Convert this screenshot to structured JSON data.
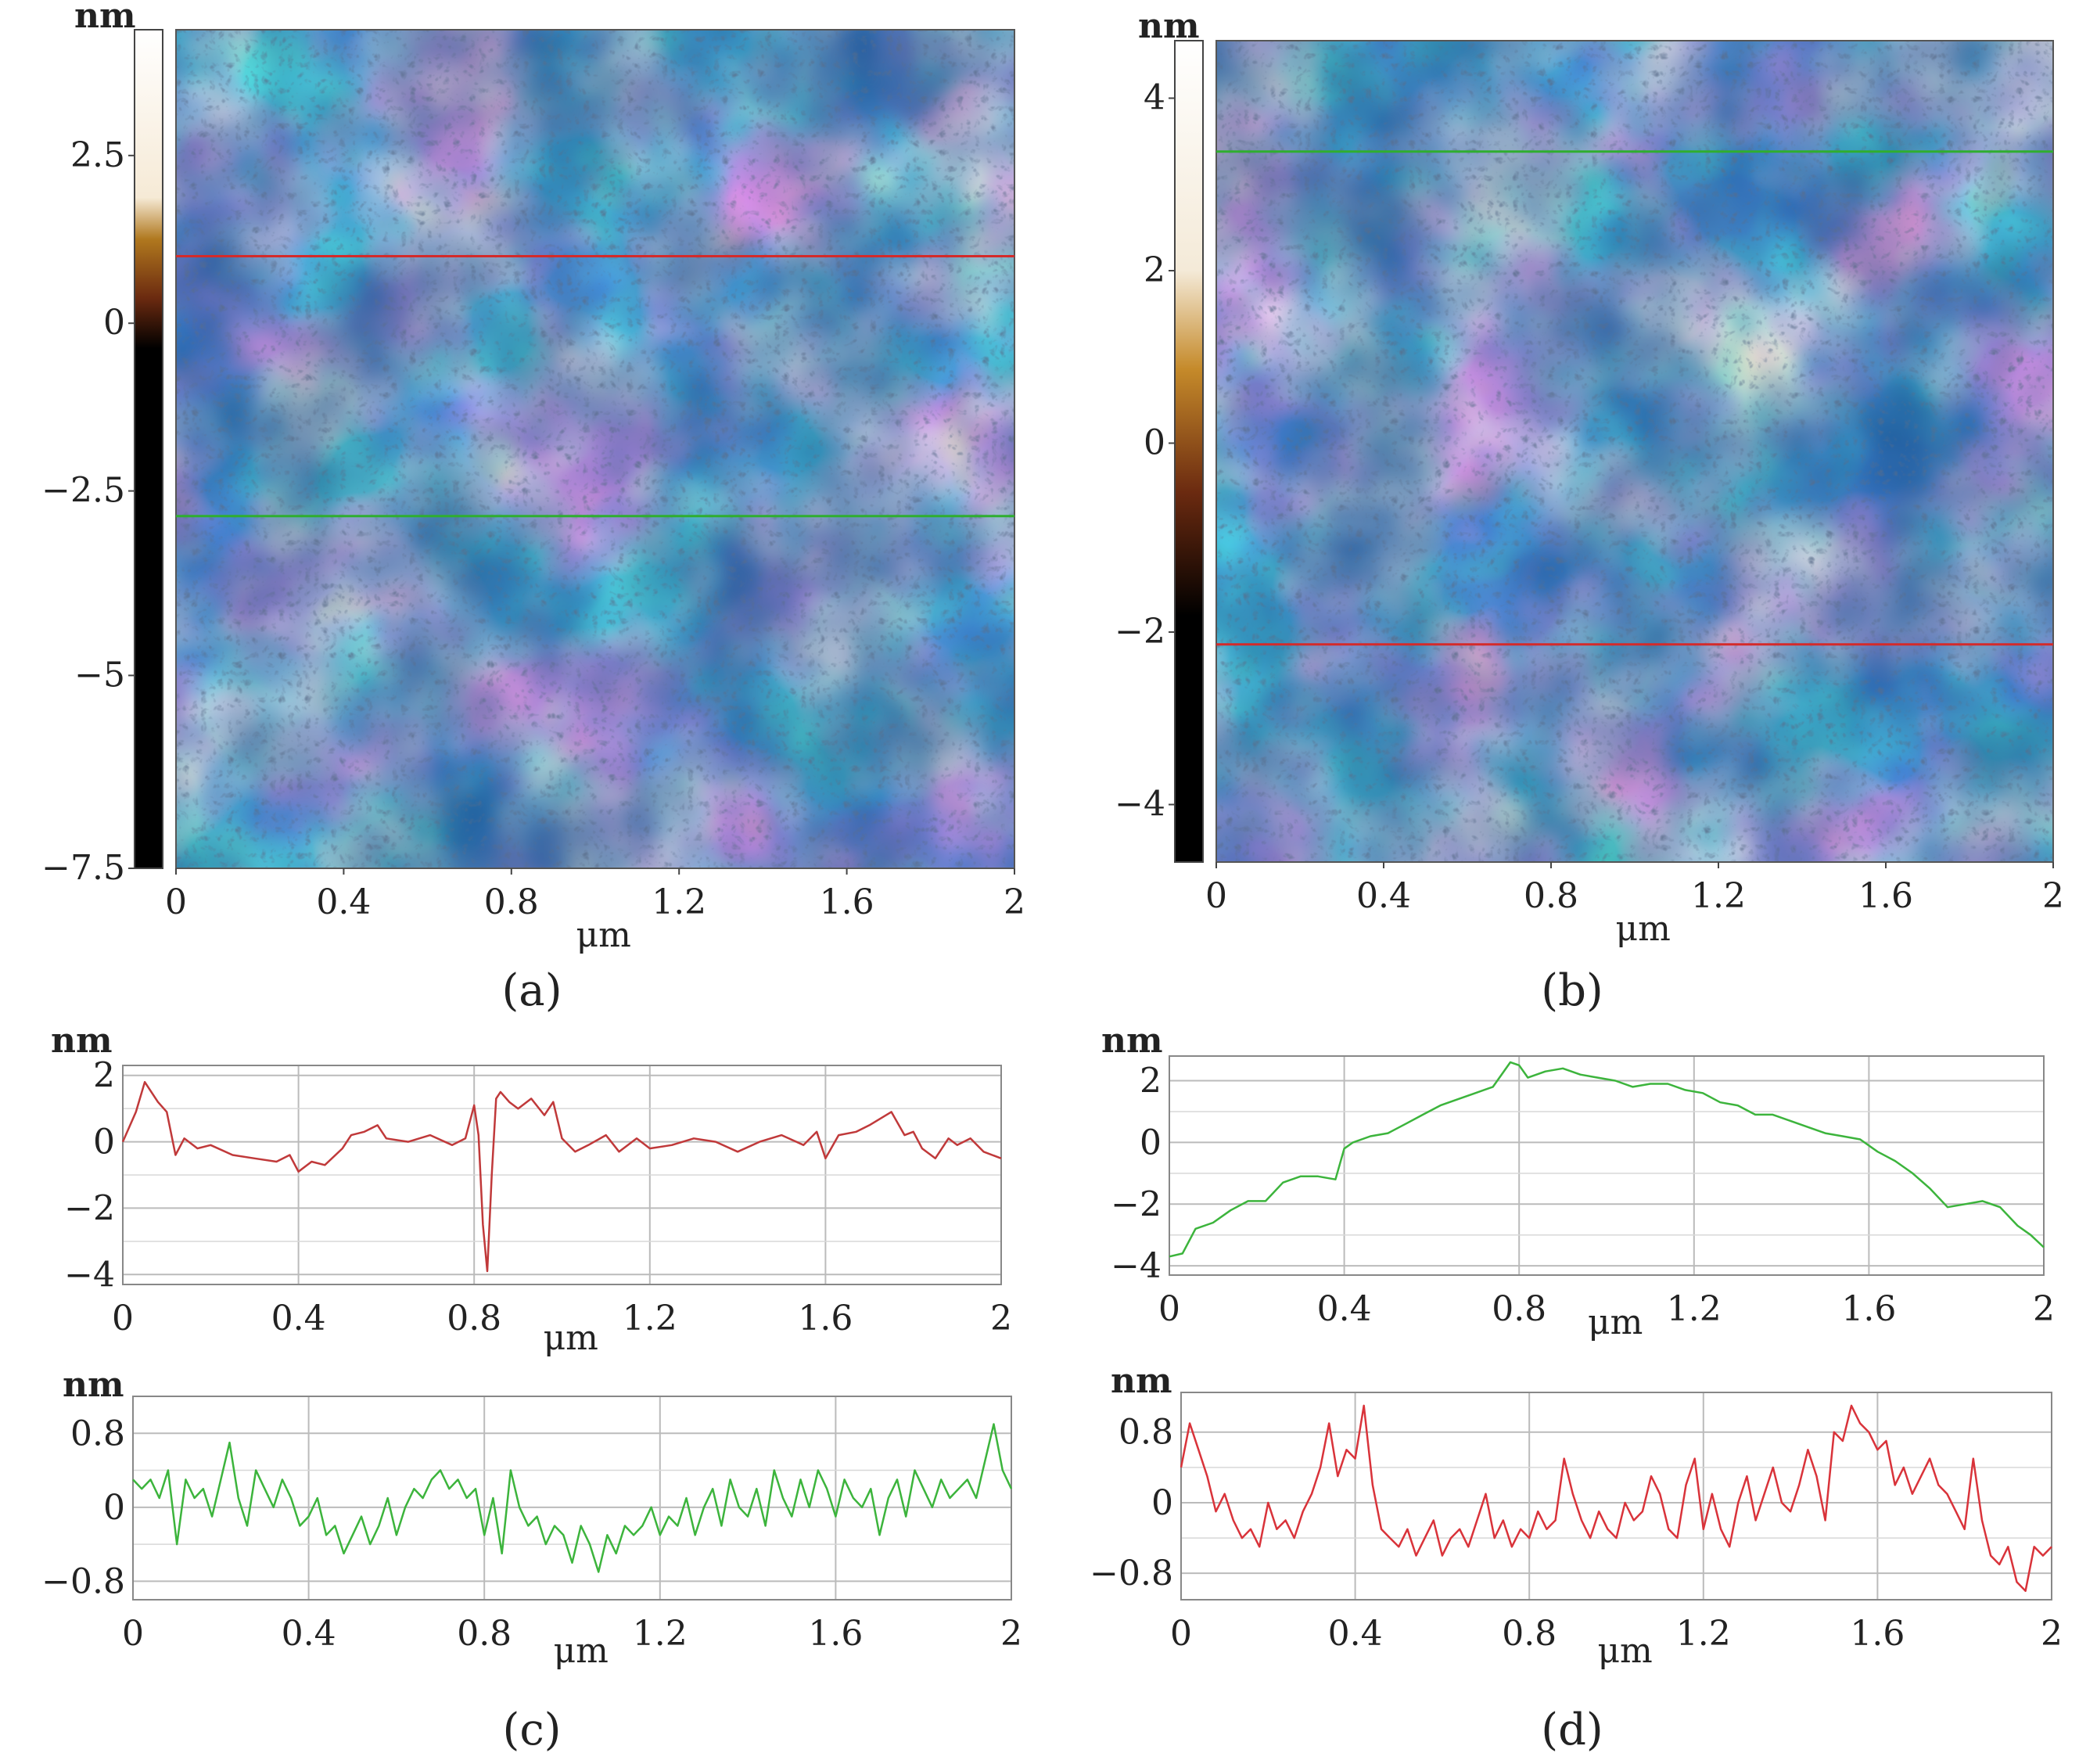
{
  "panels": [
    {
      "caption": "(a)"
    },
    {
      "caption": "(b)"
    },
    {
      "caption": "(c)"
    },
    {
      "caption": "(d)"
    }
  ],
  "chart_data": [
    {
      "type": "heatmap",
      "panel": "(a)",
      "units": {
        "z": "nm",
        "x": "μm"
      },
      "xlim": [
        0,
        2
      ],
      "x_ticks": [
        "0",
        "0.4",
        "0.8",
        "1.2",
        "1.6",
        "2"
      ],
      "colorbar": {
        "range": [
          -7.5,
          2.5
        ],
        "ticks": [
          "2.5",
          "0",
          "−2.5",
          "−5",
          "−7.5"
        ]
      },
      "scan_lines": [
        {
          "color": "#d42a2a",
          "fraction_from_top": 0.27
        },
        {
          "color": "#2fae2f",
          "fraction_from_top": 0.58
        }
      ],
      "colors": {
        "low": "#1e5a9c",
        "mid": "#dfe8f0",
        "high": "#d99a4e",
        "dark": "#000000"
      }
    },
    {
      "type": "heatmap",
      "panel": "(b)",
      "units": {
        "z": "nm",
        "x": "μm"
      },
      "xlim": [
        0,
        2
      ],
      "x_ticks": [
        "0",
        "0.4",
        "0.8",
        "1.2",
        "1.6",
        "2"
      ],
      "colorbar": {
        "range": [
          -5,
          4.7
        ],
        "ticks": [
          "4",
          "2",
          "0",
          "−2",
          "−4"
        ]
      },
      "scan_lines": [
        {
          "color": "#2fae2f",
          "fraction_from_top": 0.135
        },
        {
          "color": "#d42a2a",
          "fraction_from_top": 0.735
        }
      ],
      "colors": {
        "low": "#1e5a9c",
        "mid": "#dfe8f0",
        "high": "#d99a4e",
        "dark": "#000000"
      }
    },
    {
      "type": "line",
      "panel": "(c) top",
      "ylabel": "nm",
      "xlabel": "μm",
      "xlim": [
        0,
        2
      ],
      "ylim": [
        -4.3,
        2.3
      ],
      "x_ticks": [
        "0",
        "0.4",
        "0.8",
        "1.2",
        "1.6",
        "2"
      ],
      "y_ticks": [
        "2",
        "0",
        "−2",
        "−4"
      ],
      "color": "#c0393a",
      "series": [
        {
          "x": [
            0,
            0.03,
            0.05,
            0.08,
            0.1,
            0.12,
            0.14,
            0.17,
            0.2,
            0.25,
            0.3,
            0.35,
            0.38,
            0.4,
            0.43,
            0.46,
            0.5,
            0.52,
            0.55,
            0.58,
            0.6,
            0.65,
            0.7,
            0.75,
            0.78,
            0.8,
            0.81,
            0.82,
            0.83,
            0.84,
            0.85,
            0.86,
            0.88,
            0.9,
            0.93,
            0.96,
            0.98,
            1.0,
            1.03,
            1.06,
            1.1,
            1.13,
            1.17,
            1.2,
            1.25,
            1.3,
            1.35,
            1.4,
            1.45,
            1.5,
            1.55,
            1.58,
            1.6,
            1.63,
            1.67,
            1.7,
            1.75,
            1.78,
            1.8,
            1.82,
            1.85,
            1.88,
            1.9,
            1.93,
            1.96,
            2.0
          ],
          "y": [
            0,
            0.9,
            1.8,
            1.2,
            0.9,
            -0.4,
            0.1,
            -0.2,
            -0.1,
            -0.4,
            -0.5,
            -0.6,
            -0.4,
            -0.9,
            -0.6,
            -0.7,
            -0.2,
            0.2,
            0.3,
            0.5,
            0.1,
            0,
            0.2,
            -0.1,
            0.1,
            1.1,
            0.2,
            -2.5,
            -3.9,
            -1,
            1.3,
            1.5,
            1.2,
            1.0,
            1.3,
            0.8,
            1.2,
            0.1,
            -0.3,
            -0.1,
            0.2,
            -0.3,
            0.1,
            -0.2,
            -0.1,
            0.1,
            0,
            -0.3,
            0,
            0.2,
            -0.1,
            0.3,
            -0.5,
            0.2,
            0.3,
            0.5,
            0.9,
            0.2,
            0.3,
            -0.2,
            -0.5,
            0.1,
            -0.1,
            0.1,
            -0.3,
            -0.5
          ]
        }
      ]
    },
    {
      "type": "line",
      "panel": "(c) bottom",
      "ylabel": "nm",
      "xlabel": "μm",
      "xlim": [
        0,
        2
      ],
      "ylim": [
        -1.0,
        1.2
      ],
      "x_ticks": [
        "0",
        "0.4",
        "0.8",
        "1.2",
        "1.6",
        "2"
      ],
      "y_ticks": [
        "0.8",
        "0",
        "−0.8"
      ],
      "color": "#3cb43c",
      "series": [
        {
          "x": [
            0,
            0.02,
            0.04,
            0.06,
            0.08,
            0.1,
            0.12,
            0.14,
            0.16,
            0.18,
            0.2,
            0.22,
            0.24,
            0.26,
            0.28,
            0.3,
            0.32,
            0.34,
            0.36,
            0.38,
            0.4,
            0.42,
            0.44,
            0.46,
            0.48,
            0.5,
            0.52,
            0.54,
            0.56,
            0.58,
            0.6,
            0.62,
            0.64,
            0.66,
            0.68,
            0.7,
            0.72,
            0.74,
            0.76,
            0.78,
            0.8,
            0.82,
            0.84,
            0.86,
            0.88,
            0.9,
            0.92,
            0.94,
            0.96,
            0.98,
            1.0,
            1.02,
            1.04,
            1.06,
            1.08,
            1.1,
            1.12,
            1.14,
            1.16,
            1.18,
            1.2,
            1.22,
            1.24,
            1.26,
            1.28,
            1.3,
            1.32,
            1.34,
            1.36,
            1.38,
            1.4,
            1.42,
            1.44,
            1.46,
            1.48,
            1.5,
            1.52,
            1.54,
            1.56,
            1.58,
            1.6,
            1.62,
            1.64,
            1.66,
            1.68,
            1.7,
            1.72,
            1.74,
            1.76,
            1.78,
            1.8,
            1.82,
            1.84,
            1.86,
            1.88,
            1.9,
            1.92,
            1.94,
            1.96,
            1.98,
            2.0
          ],
          "y": [
            0.3,
            0.2,
            0.3,
            0.1,
            0.4,
            -0.4,
            0.3,
            0.1,
            0.2,
            -0.1,
            0.3,
            0.7,
            0.1,
            -0.2,
            0.4,
            0.2,
            0.0,
            0.3,
            0.1,
            -0.2,
            -0.1,
            0.1,
            -0.3,
            -0.2,
            -0.5,
            -0.3,
            -0.1,
            -0.4,
            -0.2,
            0.1,
            -0.3,
            0.0,
            0.2,
            0.1,
            0.3,
            0.4,
            0.2,
            0.3,
            0.1,
            0.2,
            -0.3,
            0.1,
            -0.5,
            0.4,
            0.0,
            -0.2,
            -0.1,
            -0.4,
            -0.2,
            -0.3,
            -0.6,
            -0.2,
            -0.4,
            -0.7,
            -0.3,
            -0.5,
            -0.2,
            -0.3,
            -0.2,
            0.0,
            -0.3,
            -0.1,
            -0.2,
            0.1,
            -0.3,
            0.0,
            0.2,
            -0.2,
            0.3,
            0.0,
            -0.1,
            0.2,
            -0.2,
            0.4,
            0.1,
            -0.1,
            0.3,
            0.0,
            0.4,
            0.2,
            -0.1,
            0.3,
            0.1,
            0.0,
            0.2,
            -0.3,
            0.1,
            0.3,
            -0.1,
            0.4,
            0.2,
            0.0,
            0.3,
            0.1,
            0.2,
            0.3,
            0.1,
            0.5,
            0.9,
            0.4,
            0.2
          ]
        }
      ]
    },
    {
      "type": "line",
      "panel": "(d) top",
      "ylabel": "nm",
      "xlabel": "μm",
      "xlim": [
        0,
        2
      ],
      "ylim": [
        -4.3,
        2.8
      ],
      "x_ticks": [
        "0",
        "0.4",
        "0.8",
        "1.2",
        "1.6",
        "2"
      ],
      "y_ticks": [
        "2",
        "0",
        "−2",
        "−4"
      ],
      "color": "#3cb43c",
      "series": [
        {
          "x": [
            0,
            0.03,
            0.06,
            0.1,
            0.14,
            0.18,
            0.22,
            0.26,
            0.3,
            0.34,
            0.38,
            0.4,
            0.42,
            0.46,
            0.5,
            0.54,
            0.58,
            0.62,
            0.66,
            0.7,
            0.74,
            0.78,
            0.8,
            0.82,
            0.86,
            0.9,
            0.94,
            0.98,
            1.02,
            1.06,
            1.1,
            1.14,
            1.18,
            1.22,
            1.26,
            1.3,
            1.34,
            1.38,
            1.42,
            1.46,
            1.5,
            1.54,
            1.58,
            1.62,
            1.66,
            1.7,
            1.74,
            1.78,
            1.82,
            1.86,
            1.9,
            1.94,
            1.97,
            2.0
          ],
          "y": [
            -3.7,
            -3.6,
            -2.8,
            -2.6,
            -2.2,
            -1.9,
            -1.9,
            -1.3,
            -1.1,
            -1.1,
            -1.2,
            -0.2,
            0.0,
            0.2,
            0.3,
            0.6,
            0.9,
            1.2,
            1.4,
            1.6,
            1.8,
            2.6,
            2.5,
            2.1,
            2.3,
            2.4,
            2.2,
            2.1,
            2.0,
            1.8,
            1.9,
            1.9,
            1.7,
            1.6,
            1.3,
            1.2,
            0.9,
            0.9,
            0.7,
            0.5,
            0.3,
            0.2,
            0.1,
            -0.3,
            -0.6,
            -1.0,
            -1.5,
            -2.1,
            -2.0,
            -1.9,
            -2.1,
            -2.7,
            -3.0,
            -3.4
          ]
        }
      ]
    },
    {
      "type": "line",
      "panel": "(d) bottom",
      "ylabel": "nm",
      "xlabel": "μm",
      "xlim": [
        0,
        2
      ],
      "ylim": [
        -1.1,
        1.25
      ],
      "x_ticks": [
        "0",
        "0.4",
        "0.8",
        "1.2",
        "1.6",
        "2"
      ],
      "y_ticks": [
        "0.8",
        "0",
        "−0.8"
      ],
      "color": "#d9333a",
      "series": [
        {
          "x": [
            0,
            0.02,
            0.04,
            0.06,
            0.08,
            0.1,
            0.12,
            0.14,
            0.16,
            0.18,
            0.2,
            0.22,
            0.24,
            0.26,
            0.28,
            0.3,
            0.32,
            0.34,
            0.36,
            0.38,
            0.4,
            0.42,
            0.44,
            0.46,
            0.48,
            0.5,
            0.52,
            0.54,
            0.56,
            0.58,
            0.6,
            0.62,
            0.64,
            0.66,
            0.68,
            0.7,
            0.72,
            0.74,
            0.76,
            0.78,
            0.8,
            0.82,
            0.84,
            0.86,
            0.88,
            0.9,
            0.92,
            0.94,
            0.96,
            0.98,
            1.0,
            1.02,
            1.04,
            1.06,
            1.08,
            1.1,
            1.12,
            1.14,
            1.16,
            1.18,
            1.2,
            1.22,
            1.24,
            1.26,
            1.28,
            1.3,
            1.32,
            1.34,
            1.36,
            1.38,
            1.4,
            1.42,
            1.44,
            1.46,
            1.48,
            1.5,
            1.52,
            1.54,
            1.56,
            1.58,
            1.6,
            1.62,
            1.64,
            1.66,
            1.68,
            1.7,
            1.72,
            1.74,
            1.76,
            1.78,
            1.8,
            1.82,
            1.84,
            1.86,
            1.88,
            1.9,
            1.92,
            1.94,
            1.96,
            1.98,
            2.0
          ],
          "y": [
            0.4,
            0.9,
            0.6,
            0.3,
            -0.1,
            0.1,
            -0.2,
            -0.4,
            -0.3,
            -0.5,
            0.0,
            -0.3,
            -0.2,
            -0.4,
            -0.1,
            0.1,
            0.4,
            0.9,
            0.3,
            0.6,
            0.5,
            1.1,
            0.2,
            -0.3,
            -0.4,
            -0.5,
            -0.3,
            -0.6,
            -0.4,
            -0.2,
            -0.6,
            -0.4,
            -0.3,
            -0.5,
            -0.2,
            0.1,
            -0.4,
            -0.2,
            -0.5,
            -0.3,
            -0.4,
            -0.1,
            -0.3,
            -0.2,
            0.5,
            0.1,
            -0.2,
            -0.4,
            -0.1,
            -0.3,
            -0.4,
            0.0,
            -0.2,
            -0.1,
            0.3,
            0.1,
            -0.3,
            -0.4,
            0.2,
            0.5,
            -0.3,
            0.1,
            -0.3,
            -0.5,
            0.0,
            0.3,
            -0.2,
            0.1,
            0.4,
            0.0,
            -0.1,
            0.2,
            0.6,
            0.3,
            -0.2,
            0.8,
            0.7,
            1.1,
            0.9,
            0.8,
            0.6,
            0.7,
            0.2,
            0.4,
            0.1,
            0.3,
            0.5,
            0.2,
            0.1,
            -0.1,
            -0.3,
            0.5,
            -0.2,
            -0.6,
            -0.7,
            -0.5,
            -0.9,
            -1.0,
            -0.5,
            -0.6,
            -0.5
          ]
        }
      ]
    }
  ]
}
